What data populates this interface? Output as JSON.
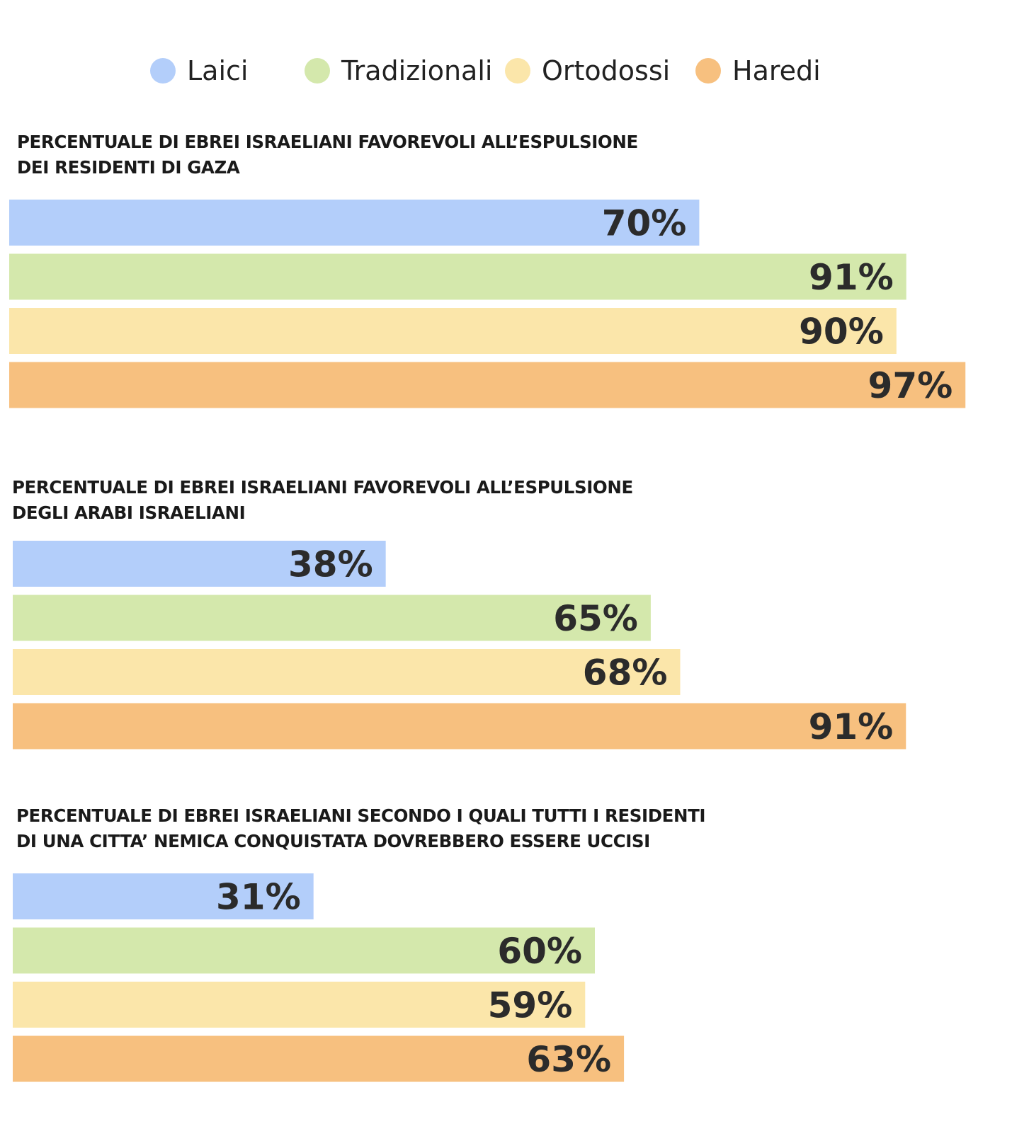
{
  "chart_data": [
    {
      "type": "bar",
      "orientation": "horizontal",
      "title_lines": [
        "PERCENTUALE DI EBREI ISRAELIANI FAVOREVOLI ALL’ESPULSIONE",
        "DEI RESIDENTI DI GAZA"
      ],
      "categories": [
        "Laici",
        "Tradizionali",
        "Ortodossi",
        "Haredi"
      ],
      "values": [
        70,
        91,
        90,
        97
      ],
      "value_labels": [
        "70%",
        "91%",
        "90%",
        "97%"
      ],
      "xlim": [
        0,
        100
      ],
      "grid": false
    },
    {
      "type": "bar",
      "orientation": "horizontal",
      "title_lines": [
        "PERCENTUALE DI EBREI ISRAELIANI FAVOREVOLI ALL’ESPULSIONE",
        "DEGLI ARABI ISRAELIANI"
      ],
      "categories": [
        "Laici",
        "Tradizionali",
        "Ortodossi",
        "Haredi"
      ],
      "values": [
        38,
        65,
        68,
        91
      ],
      "value_labels": [
        "38%",
        "65%",
        "68%",
        "91%"
      ],
      "xlim": [
        0,
        100
      ],
      "grid": false
    },
    {
      "type": "bar",
      "orientation": "horizontal",
      "title_lines": [
        "PERCENTUALE DI EBREI ISRAELIANI SECONDO I QUALI TUTTI I RESIDENTI",
        "DI UNA CITTA’ NEMICA CONQUISTATA DOVREBBERO ESSERE UCCISI"
      ],
      "categories": [
        "Laici",
        "Tradizionali",
        "Ortodossi",
        "Haredi"
      ],
      "values": [
        31,
        60,
        59,
        63
      ],
      "value_labels": [
        "31%",
        "60%",
        "59%",
        "63%"
      ],
      "xlim": [
        0,
        100
      ],
      "grid": false
    }
  ],
  "legend": {
    "placement": "top",
    "items": [
      {
        "label": "Laici",
        "color": "#b3cefa"
      },
      {
        "label": "Tradizionali",
        "color": "#d4e8ac"
      },
      {
        "label": "Ortodossi",
        "color": "#fbe6aa"
      },
      {
        "label": "Haredi",
        "color": "#f7c07f"
      }
    ]
  }
}
